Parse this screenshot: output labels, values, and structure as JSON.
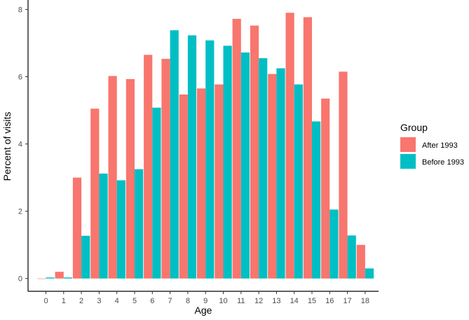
{
  "chart_data": {
    "type": "bar",
    "categories": [
      "0",
      "1",
      "2",
      "3",
      "4",
      "5",
      "6",
      "7",
      "8",
      "9",
      "10",
      "11",
      "12",
      "13",
      "14",
      "15",
      "16",
      "17",
      "18"
    ],
    "series": [
      {
        "name": "After 1993",
        "color": "#F8766D",
        "values": [
          0.0,
          0.2,
          3.0,
          5.05,
          6.02,
          5.93,
          6.65,
          6.53,
          5.47,
          5.65,
          5.77,
          7.72,
          7.52,
          6.08,
          7.9,
          7.77,
          5.35,
          6.15,
          1.0
        ]
      },
      {
        "name": "Before 1993",
        "color": "#00BFC4",
        "values": [
          0.03,
          0.03,
          1.27,
          3.12,
          2.92,
          3.25,
          5.08,
          7.38,
          7.23,
          7.08,
          6.92,
          6.72,
          6.55,
          6.25,
          5.77,
          4.67,
          2.05,
          1.28,
          0.3
        ]
      }
    ],
    "xlabel": "Age",
    "ylabel": "Percent of visits",
    "ylim": [
      -0.38,
      8.28
    ],
    "yticks": [
      0,
      2,
      4,
      6,
      8
    ],
    "grid": false,
    "legend": {
      "title": "Group",
      "placement": "right"
    }
  }
}
